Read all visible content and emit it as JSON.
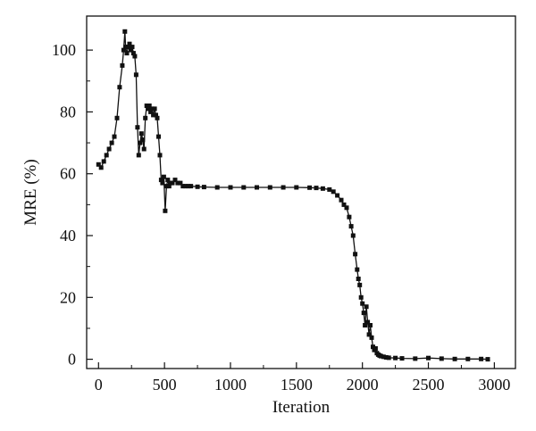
{
  "chart_data": {
    "type": "line",
    "title": "",
    "xlabel": "Iteration",
    "ylabel": "MRE (%)",
    "xlim": [
      -90,
      3160
    ],
    "ylim": [
      -3,
      111
    ],
    "xticks": [
      0,
      500,
      1000,
      1500,
      2000,
      2500,
      3000
    ],
    "yticks": [
      0,
      20,
      40,
      60,
      80,
      100
    ],
    "marker": "square",
    "color": "#111111",
    "grid": false,
    "series": [
      {
        "x": [
          0,
          20,
          40,
          60,
          80,
          100,
          120,
          140,
          160,
          180,
          190,
          200,
          205,
          215,
          225,
          235,
          245,
          255,
          265,
          275,
          285,
          295,
          305,
          315,
          325,
          335,
          345,
          355,
          365,
          375,
          385,
          395,
          405,
          415,
          425,
          435,
          445,
          455,
          465,
          475,
          485,
          495,
          505,
          515,
          525,
          535,
          545,
          560,
          580,
          600,
          620,
          640,
          660,
          680,
          700,
          750,
          800,
          900,
          1000,
          1100,
          1200,
          1300,
          1400,
          1500,
          1600,
          1650,
          1700,
          1750,
          1780,
          1810,
          1840,
          1860,
          1880,
          1900,
          1915,
          1930,
          1945,
          1960,
          1970,
          1980,
          1990,
          2000,
          2010,
          2020,
          2030,
          2040,
          2050,
          2060,
          2070,
          2080,
          2090,
          2100,
          2110,
          2120,
          2130,
          2140,
          2160,
          2180,
          2200,
          2250,
          2300,
          2400,
          2500,
          2600,
          2700,
          2800,
          2900,
          2950
        ],
        "y": [
          63,
          62,
          64,
          66,
          68,
          70,
          72,
          78,
          88,
          95,
          100,
          106,
          101,
          99,
          101,
          102,
          100,
          101,
          99,
          98,
          92,
          75,
          66,
          70,
          73,
          71,
          68,
          78,
          82,
          81,
          82,
          80,
          81,
          79,
          81,
          79,
          78,
          72,
          66,
          58,
          57,
          59,
          48,
          56,
          58,
          56,
          57,
          57,
          58,
          57,
          57,
          56,
          56,
          56,
          56,
          55.8,
          55.7,
          55.6,
          55.6,
          55.6,
          55.6,
          55.6,
          55.6,
          55.6,
          55.5,
          55.4,
          55.2,
          54.9,
          54.2,
          53,
          51.5,
          50,
          49,
          46,
          43,
          40,
          34,
          29,
          26,
          24,
          20,
          18,
          15,
          11,
          17,
          12,
          8,
          11,
          7,
          4,
          3,
          3.5,
          2,
          1.5,
          1.2,
          1,
          0.8,
          0.6,
          0.5,
          0.4,
          0.3,
          0.2,
          0.4,
          0.2,
          0.1,
          0.1,
          0.1,
          0
        ]
      }
    ]
  }
}
